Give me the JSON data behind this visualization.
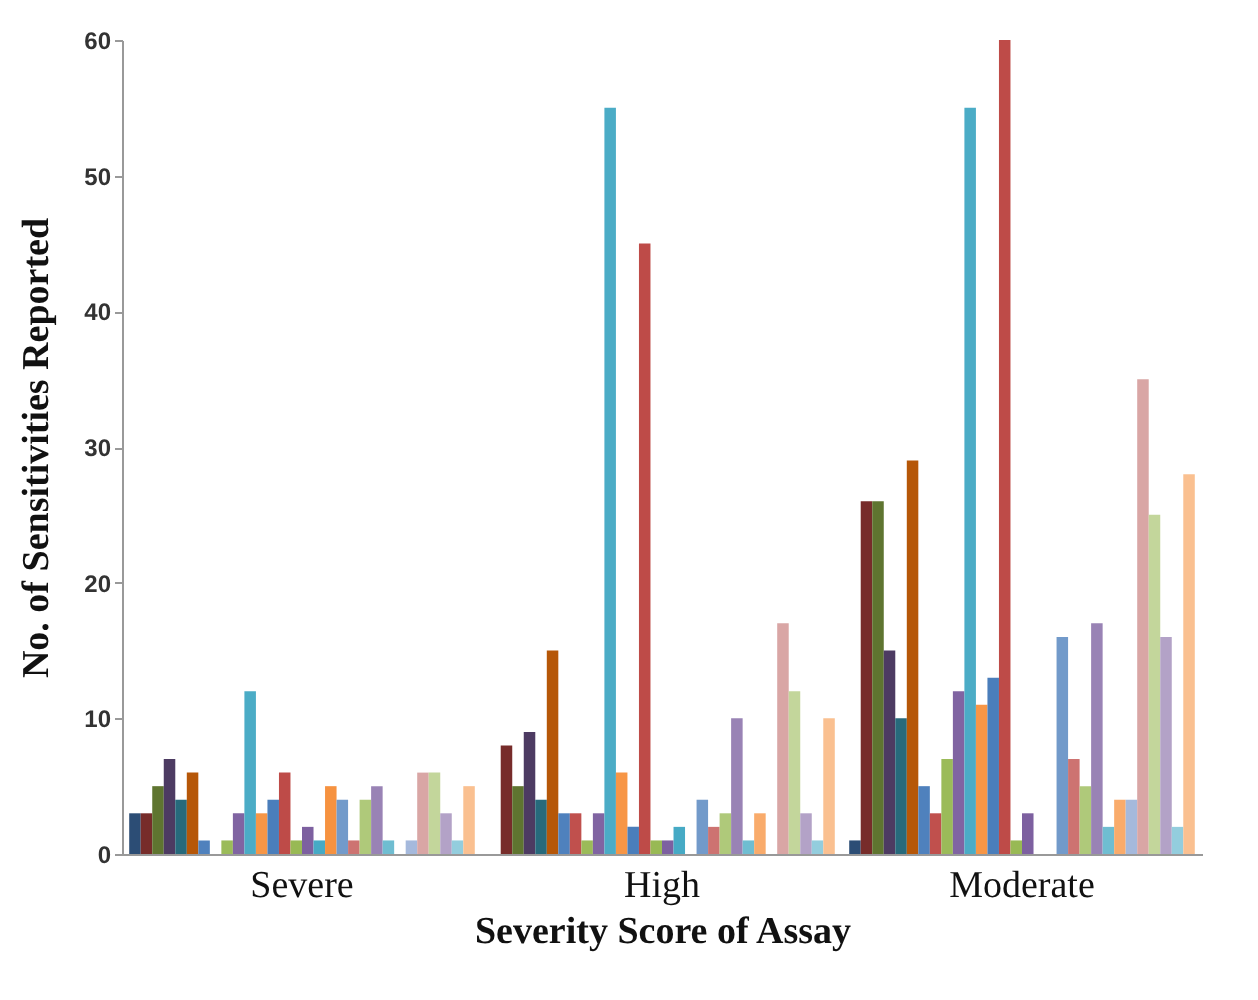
{
  "chart_data": {
    "type": "bar",
    "xlabel": "Severity Score of Assay",
    "ylabel": "No. of Sensitivities Reported",
    "categories": [
      "Severe",
      "High",
      "Moderate"
    ],
    "ylim": [
      0,
      60
    ],
    "yticks": [
      0,
      10,
      20,
      30,
      40,
      50,
      60
    ],
    "grid": false,
    "legend": false,
    "series": [
      {
        "color": "#2c4d75",
        "values": [
          3,
          0,
          1
        ]
      },
      {
        "color": "#772c2a",
        "values": [
          3,
          8,
          26
        ]
      },
      {
        "color": "#5f7530",
        "values": [
          5,
          5,
          26
        ]
      },
      {
        "color": "#4d3b62",
        "values": [
          7,
          9,
          15
        ]
      },
      {
        "color": "#276a7c",
        "values": [
          4,
          4,
          10
        ]
      },
      {
        "color": "#b65708",
        "values": [
          6,
          15,
          29
        ]
      },
      {
        "color": "#4f81bd",
        "values": [
          1,
          3,
          5
        ]
      },
      {
        "color": "#c0504d",
        "values": [
          0,
          3,
          3
        ]
      },
      {
        "color": "#9bbb59",
        "values": [
          1,
          1,
          7
        ]
      },
      {
        "color": "#8064a2",
        "values": [
          3,
          3,
          12
        ]
      },
      {
        "color": "#4bacc6",
        "values": [
          12,
          55,
          55
        ]
      },
      {
        "color": "#f79646",
        "values": [
          3,
          6,
          11
        ]
      },
      {
        "color": "#4a7ebb",
        "values": [
          4,
          2,
          13
        ]
      },
      {
        "color": "#be4b48",
        "values": [
          6,
          45,
          60
        ]
      },
      {
        "color": "#98b954",
        "values": [
          1,
          1,
          1
        ]
      },
      {
        "color": "#7d60a0",
        "values": [
          2,
          1,
          3
        ]
      },
      {
        "color": "#46aac5",
        "values": [
          1,
          2,
          0
        ]
      },
      {
        "color": "#f69240",
        "values": [
          5,
          0,
          0
        ]
      },
      {
        "color": "#729aca",
        "values": [
          4,
          4,
          16
        ]
      },
      {
        "color": "#cd7371",
        "values": [
          1,
          2,
          7
        ]
      },
      {
        "color": "#afc97a",
        "values": [
          4,
          3,
          5
        ]
      },
      {
        "color": "#9983b5",
        "values": [
          5,
          10,
          17
        ]
      },
      {
        "color": "#6fbdd1",
        "values": [
          1,
          1,
          2
        ]
      },
      {
        "color": "#f9ab6b",
        "values": [
          0,
          3,
          4
        ]
      },
      {
        "color": "#a5b9dc",
        "values": [
          1,
          0,
          4
        ]
      },
      {
        "color": "#d9a6a5",
        "values": [
          6,
          17,
          35
        ]
      },
      {
        "color": "#c3d69b",
        "values": [
          6,
          12,
          25
        ]
      },
      {
        "color": "#b3a2c7",
        "values": [
          3,
          3,
          16
        ]
      },
      {
        "color": "#93cddd",
        "values": [
          1,
          1,
          2
        ]
      },
      {
        "color": "#fac090",
        "values": [
          5,
          10,
          28
        ]
      }
    ]
  }
}
